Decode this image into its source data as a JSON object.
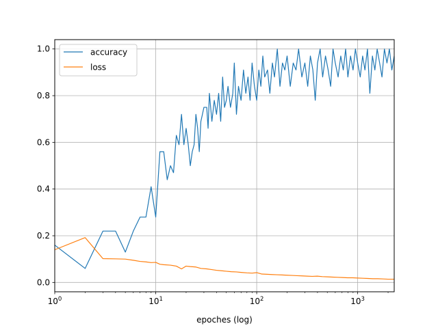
{
  "chart_data": {
    "type": "line",
    "title": "",
    "xlabel": "epoches (log)",
    "ylabel": "",
    "xscale": "log",
    "xlim": [
      1,
      2300
    ],
    "ylim": [
      -0.04,
      1.04
    ],
    "grid": true,
    "legend_position": "upper-left",
    "x_ticks": [
      {
        "value": 1,
        "base": "10",
        "exp": "0"
      },
      {
        "value": 10,
        "base": "10",
        "exp": "1"
      },
      {
        "value": 100,
        "base": "10",
        "exp": "2"
      },
      {
        "value": 1000,
        "base": "10",
        "exp": "3"
      }
    ],
    "y_ticks": [
      {
        "value": 0.0,
        "label": "0.0"
      },
      {
        "value": 0.2,
        "label": "0.2"
      },
      {
        "value": 0.4,
        "label": "0.4"
      },
      {
        "value": 0.6,
        "label": "0.6"
      },
      {
        "value": 0.8,
        "label": "0.8"
      },
      {
        "value": 1.0,
        "label": "1.0"
      }
    ],
    "series": [
      {
        "name": "accuracy",
        "color": "#1f77b4",
        "points": [
          [
            1,
            0.16
          ],
          [
            2,
            0.06
          ],
          [
            3,
            0.22
          ],
          [
            4,
            0.22
          ],
          [
            5,
            0.13
          ],
          [
            6,
            0.22
          ],
          [
            7,
            0.28
          ],
          [
            8,
            0.28
          ],
          [
            9,
            0.41
          ],
          [
            10,
            0.28
          ],
          [
            11,
            0.56
          ],
          [
            12,
            0.56
          ],
          [
            13,
            0.44
          ],
          [
            14,
            0.5
          ],
          [
            15,
            0.47
          ],
          [
            16,
            0.63
          ],
          [
            17,
            0.59
          ],
          [
            18,
            0.72
          ],
          [
            19,
            0.59
          ],
          [
            20,
            0.66
          ],
          [
            21,
            0.59
          ],
          [
            22,
            0.5
          ],
          [
            23,
            0.56
          ],
          [
            24,
            0.59
          ],
          [
            25,
            0.72
          ],
          [
            26,
            0.66
          ],
          [
            27,
            0.56
          ],
          [
            28,
            0.69
          ],
          [
            29,
            0.72
          ],
          [
            30,
            0.75
          ],
          [
            32,
            0.75
          ],
          [
            33,
            0.66
          ],
          [
            34,
            0.81
          ],
          [
            36,
            0.69
          ],
          [
            38,
            0.78
          ],
          [
            40,
            0.72
          ],
          [
            42,
            0.81
          ],
          [
            44,
            0.69
          ],
          [
            46,
            0.88
          ],
          [
            48,
            0.75
          ],
          [
            50,
            0.78
          ],
          [
            52,
            0.84
          ],
          [
            55,
            0.75
          ],
          [
            58,
            0.81
          ],
          [
            60,
            0.94
          ],
          [
            63,
            0.72
          ],
          [
            66,
            0.84
          ],
          [
            70,
            0.78
          ],
          [
            74,
            0.91
          ],
          [
            78,
            0.81
          ],
          [
            82,
            0.88
          ],
          [
            86,
            0.78
          ],
          [
            90,
            0.94
          ],
          [
            95,
            0.84
          ],
          [
            100,
            0.78
          ],
          [
            105,
            0.91
          ],
          [
            110,
            0.84
          ],
          [
            115,
            0.97
          ],
          [
            120,
            0.88
          ],
          [
            128,
            0.91
          ],
          [
            135,
            0.81
          ],
          [
            143,
            0.94
          ],
          [
            150,
            0.88
          ],
          [
            160,
            1.0
          ],
          [
            170,
            0.84
          ],
          [
            180,
            0.94
          ],
          [
            190,
            0.91
          ],
          [
            200,
            0.97
          ],
          [
            215,
            0.84
          ],
          [
            230,
            0.94
          ],
          [
            245,
            0.91
          ],
          [
            260,
            1.0
          ],
          [
            280,
            0.88
          ],
          [
            300,
            0.94
          ],
          [
            320,
            0.84
          ],
          [
            340,
            0.97
          ],
          [
            360,
            0.91
          ],
          [
            380,
            0.78
          ],
          [
            400,
            0.94
          ],
          [
            425,
            1.0
          ],
          [
            450,
            0.88
          ],
          [
            480,
            0.97
          ],
          [
            510,
            0.91
          ],
          [
            540,
            0.84
          ],
          [
            570,
            1.0
          ],
          [
            600,
            0.94
          ],
          [
            640,
            0.88
          ],
          [
            680,
            0.97
          ],
          [
            720,
            0.91
          ],
          [
            760,
            1.0
          ],
          [
            800,
            0.88
          ],
          [
            850,
            0.97
          ],
          [
            900,
            0.91
          ],
          [
            950,
            1.0
          ],
          [
            1000,
            0.94
          ],
          [
            1060,
            0.88
          ],
          [
            1120,
            0.97
          ],
          [
            1180,
            0.91
          ],
          [
            1250,
            1.0
          ],
          [
            1320,
            0.81
          ],
          [
            1400,
            0.97
          ],
          [
            1480,
            0.91
          ],
          [
            1560,
            1.0
          ],
          [
            1650,
            0.94
          ],
          [
            1740,
            0.88
          ],
          [
            1840,
            1.0
          ],
          [
            1950,
            0.94
          ],
          [
            2060,
            1.0
          ],
          [
            2180,
            0.91
          ],
          [
            2300,
            0.97
          ]
        ]
      },
      {
        "name": "loss",
        "color": "#ff7f0e",
        "points": [
          [
            1,
            0.14
          ],
          [
            2,
            0.192
          ],
          [
            3,
            0.102
          ],
          [
            4,
            0.101
          ],
          [
            5,
            0.1
          ],
          [
            6,
            0.095
          ],
          [
            7,
            0.09
          ],
          [
            8,
            0.088
          ],
          [
            9,
            0.085
          ],
          [
            10,
            0.086
          ],
          [
            11,
            0.078
          ],
          [
            12,
            0.076
          ],
          [
            14,
            0.074
          ],
          [
            16,
            0.07
          ],
          [
            18,
            0.058
          ],
          [
            20,
            0.07
          ],
          [
            22,
            0.068
          ],
          [
            25,
            0.066
          ],
          [
            28,
            0.06
          ],
          [
            32,
            0.058
          ],
          [
            36,
            0.055
          ],
          [
            40,
            0.052
          ],
          [
            45,
            0.05
          ],
          [
            50,
            0.048
          ],
          [
            56,
            0.046
          ],
          [
            63,
            0.045
          ],
          [
            70,
            0.043
          ],
          [
            80,
            0.041
          ],
          [
            90,
            0.04
          ],
          [
            100,
            0.042
          ],
          [
            112,
            0.036
          ],
          [
            126,
            0.035
          ],
          [
            141,
            0.034
          ],
          [
            158,
            0.033
          ],
          [
            178,
            0.032
          ],
          [
            200,
            0.031
          ],
          [
            224,
            0.03
          ],
          [
            251,
            0.029
          ],
          [
            282,
            0.028
          ],
          [
            316,
            0.027
          ],
          [
            355,
            0.026
          ],
          [
            398,
            0.027
          ],
          [
            447,
            0.025
          ],
          [
            501,
            0.024
          ],
          [
            562,
            0.023
          ],
          [
            631,
            0.022
          ],
          [
            708,
            0.021
          ],
          [
            794,
            0.02
          ],
          [
            891,
            0.02
          ],
          [
            1000,
            0.019
          ],
          [
            1122,
            0.018
          ],
          [
            1259,
            0.017
          ],
          [
            1413,
            0.016
          ],
          [
            1585,
            0.016
          ],
          [
            1778,
            0.015
          ],
          [
            1995,
            0.014
          ],
          [
            2300,
            0.014
          ]
        ]
      }
    ]
  }
}
